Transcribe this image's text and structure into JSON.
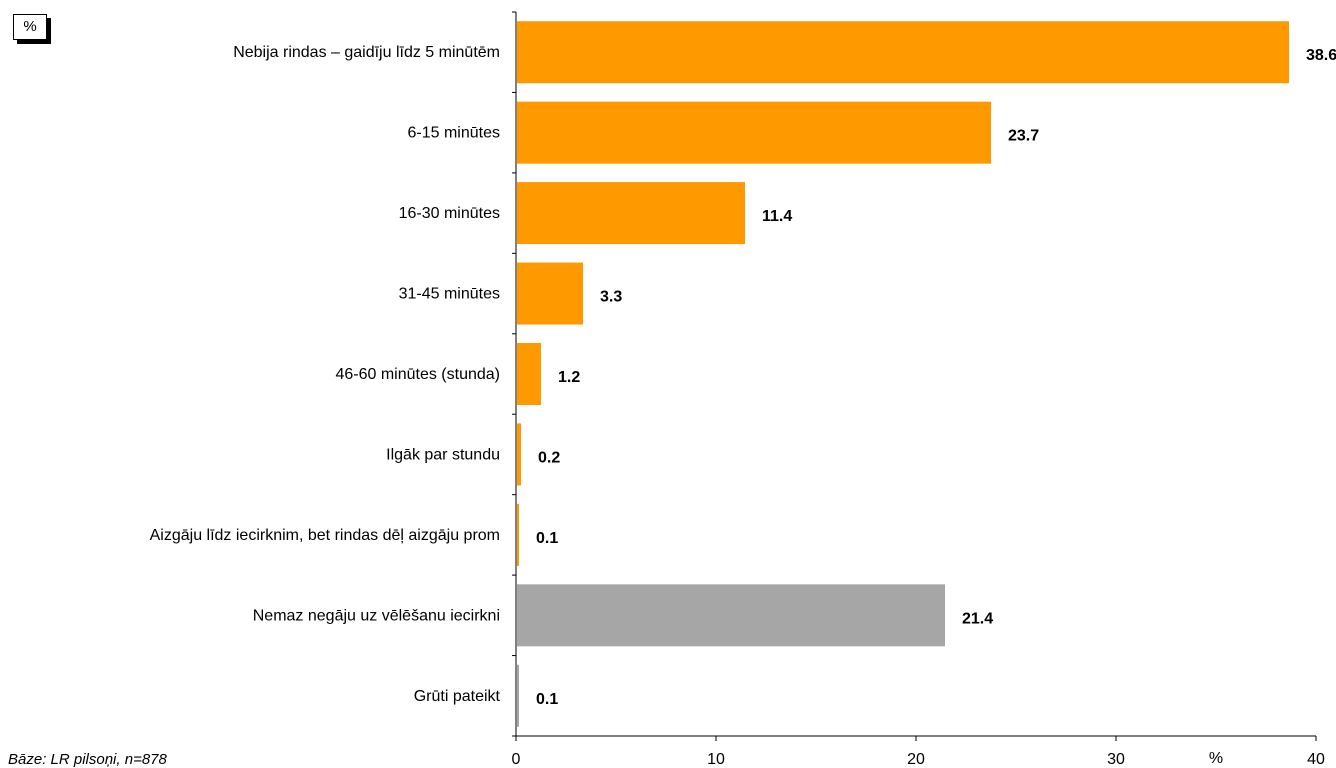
{
  "chart_data": {
    "type": "bar",
    "orientation": "horizontal",
    "categories": [
      "Nebija rindas – gaidīju līdz 5 minūtēm",
      "6-15 minūtes",
      "16-30 minūtes",
      "31-45 minūtes",
      "46-60 minūtes (stunda)",
      "Ilgāk par stundu",
      "Aizgāju līdz iecirknim, bet rindas dēļ aizgāju prom",
      "Nemaz negāju uz vēlēšanu iecirkni",
      "Grūti pateikt"
    ],
    "values": [
      38.6,
      23.7,
      11.4,
      3.3,
      1.2,
      0.2,
      0.1,
      21.4,
      0.1
    ],
    "value_labels": [
      "38.6",
      "23.7",
      "11.4",
      "3.3",
      "1.2",
      "0.2",
      "0.1",
      "21.4",
      "0.1"
    ],
    "bar_colors": [
      "#FF9900",
      "#FF9900",
      "#FF9900",
      "#FF9900",
      "#FF9900",
      "#FF9900",
      "#FF9900",
      "#A6A6A6",
      "#A6A6A6"
    ],
    "xlim": [
      0,
      40
    ],
    "xticks": [
      "0",
      "10",
      "20",
      "30",
      "40"
    ],
    "unit_box": "%",
    "axis_unit_label": "%",
    "grid": false,
    "footnote": "Bāze: LR pilsoņi, n=878"
  }
}
